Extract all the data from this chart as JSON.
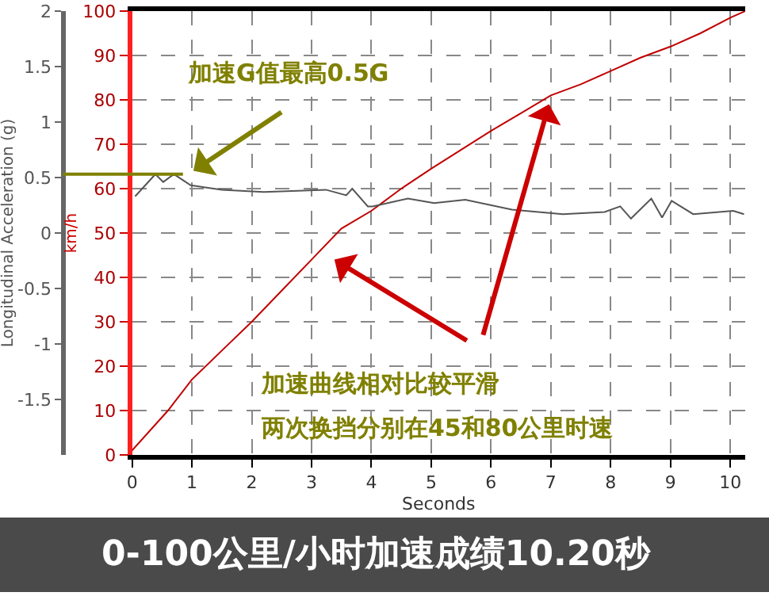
{
  "chart_data": {
    "type": "line",
    "xlabel": "Seconds",
    "ylabel": "km/h",
    "y2label": "Longitudinal Acceleration (g)",
    "xlim": [
      0,
      10.25
    ],
    "xticks": [
      0,
      1,
      2,
      3,
      4,
      5,
      6,
      7,
      8,
      9,
      10
    ],
    "ylim": [
      0,
      100
    ],
    "yticks": [
      0,
      10,
      20,
      30,
      40,
      50,
      60,
      70,
      80,
      90,
      100
    ],
    "y2lim": [
      -2,
      2
    ],
    "y2ticks": [
      -1.5,
      -1,
      -0.5,
      0,
      0.5,
      1,
      1.5,
      2
    ],
    "grid": true,
    "marker": "none",
    "line_style": "solid",
    "series": [
      {
        "color": "#c00000",
        "x": [
          0,
          0.6,
          1,
          1.5,
          2,
          2.5,
          3,
          3.5,
          4,
          4.5,
          5,
          6,
          6.5,
          7,
          7.5,
          8,
          8.5,
          9,
          9.5,
          10,
          10.25
        ],
        "values": [
          1,
          10,
          17,
          23.5,
          30,
          37,
          44,
          51,
          55,
          60,
          64.5,
          73,
          77,
          81,
          83.5,
          86.5,
          89.5,
          92,
          95,
          98.5,
          100
        ]
      },
      {
        "color": "#555555",
        "axis": "y2",
        "x": [
          0.05,
          0.39,
          0.52,
          0.7,
          0.98,
          1.5,
          2.2,
          3.24,
          3.58,
          3.68,
          3.94,
          4.02,
          4.61,
          5.05,
          5.57,
          6.35,
          7.2,
          7.9,
          8.16,
          8.34,
          8.68,
          8.86,
          9.02,
          9.38,
          10.05,
          10.23
        ],
        "values": [
          0.33,
          0.53,
          0.46,
          0.53,
          0.43,
          0.39,
          0.37,
          0.39,
          0.34,
          0.4,
          0.24,
          0.24,
          0.31,
          0.27,
          0.3,
          0.21,
          0.17,
          0.19,
          0.24,
          0.13,
          0.31,
          0.14,
          0.29,
          0.17,
          0.2,
          0.17
        ]
      }
    ],
    "ref_lines": [
      {
        "axis": "y2",
        "value": 0.53,
        "color": "#808000"
      }
    ],
    "annotations": [
      "加速G值最高0.5G",
      "加速曲线相对比较平滑",
      "两次换挡分别在45和80公里时速",
      "0-100公里/小时加速成绩10.20秒"
    ]
  }
}
